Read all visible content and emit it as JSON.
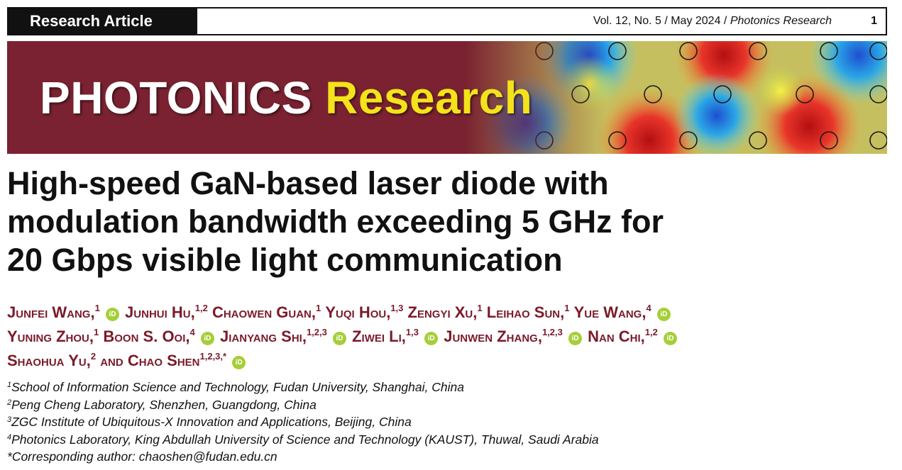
{
  "header": {
    "article_type": "Research Article",
    "journal_ref_prefix": "Vol. 12, No. 5 / May 2024 / ",
    "journal_name": "Photonics Research",
    "page_number": "1"
  },
  "banner": {
    "brand_white": "PHOTONICS",
    "brand_yellow": "Research",
    "colors": {
      "background": "#7a2231",
      "yellow": "#f4e21b"
    }
  },
  "title_lines": [
    "High-speed GaN-based laser diode with",
    "modulation bandwidth exceeding 5 GHz for",
    "20 Gbps visible light communication"
  ],
  "authors": [
    {
      "name": "Junfei Wang,",
      "sup": "1",
      "orcid": true
    },
    {
      "name": "Junhui Hu,",
      "sup": "1,2",
      "orcid": false
    },
    {
      "name": "Chaowen Guan,",
      "sup": "1",
      "orcid": false
    },
    {
      "name": "Yuqi Hou,",
      "sup": "1,3",
      "orcid": false
    },
    {
      "name": "Zengyi Xu,",
      "sup": "1",
      "orcid": false
    },
    {
      "name": "Leihao Sun,",
      "sup": "1",
      "orcid": false
    },
    {
      "name": "Yue Wang,",
      "sup": "4",
      "orcid": true
    },
    {
      "name": "Yuning Zhou,",
      "sup": "1",
      "orcid": false
    },
    {
      "name": "Boon S. Ooi,",
      "sup": "4",
      "orcid": true
    },
    {
      "name": "Jianyang Shi,",
      "sup": "1,2,3",
      "orcid": true
    },
    {
      "name": "Ziwei Li,",
      "sup": "1,3",
      "orcid": true
    },
    {
      "name": "Junwen Zhang,",
      "sup": "1,2,3",
      "orcid": true
    },
    {
      "name": "Nan Chi,",
      "sup": "1,2",
      "orcid": true
    },
    {
      "name": "Shaohua Yu,",
      "sup": "2",
      "orcid": false
    },
    {
      "name": "and Chao Shen",
      "sup": "1,2,3,*",
      "orcid": true
    }
  ],
  "orcid_icon_label": "iD",
  "affiliations": [
    {
      "sup": "1",
      "text": "School of Information Science and Technology, Fudan University, Shanghai, China"
    },
    {
      "sup": "2",
      "text": "Peng Cheng Laboratory, Shenzhen, Guangdong, China"
    },
    {
      "sup": "3",
      "text": "ZGC Institute of Ubiquitous-X Innovation and Applications, Beijing, China"
    },
    {
      "sup": "4",
      "text": "Photonics Laboratory, King Abdullah University of Science and Technology (KAUST), Thuwal, Saudi Arabia"
    },
    {
      "sup": "*",
      "text": "Corresponding author: chaoshen@fudan.edu.cn"
    }
  ]
}
